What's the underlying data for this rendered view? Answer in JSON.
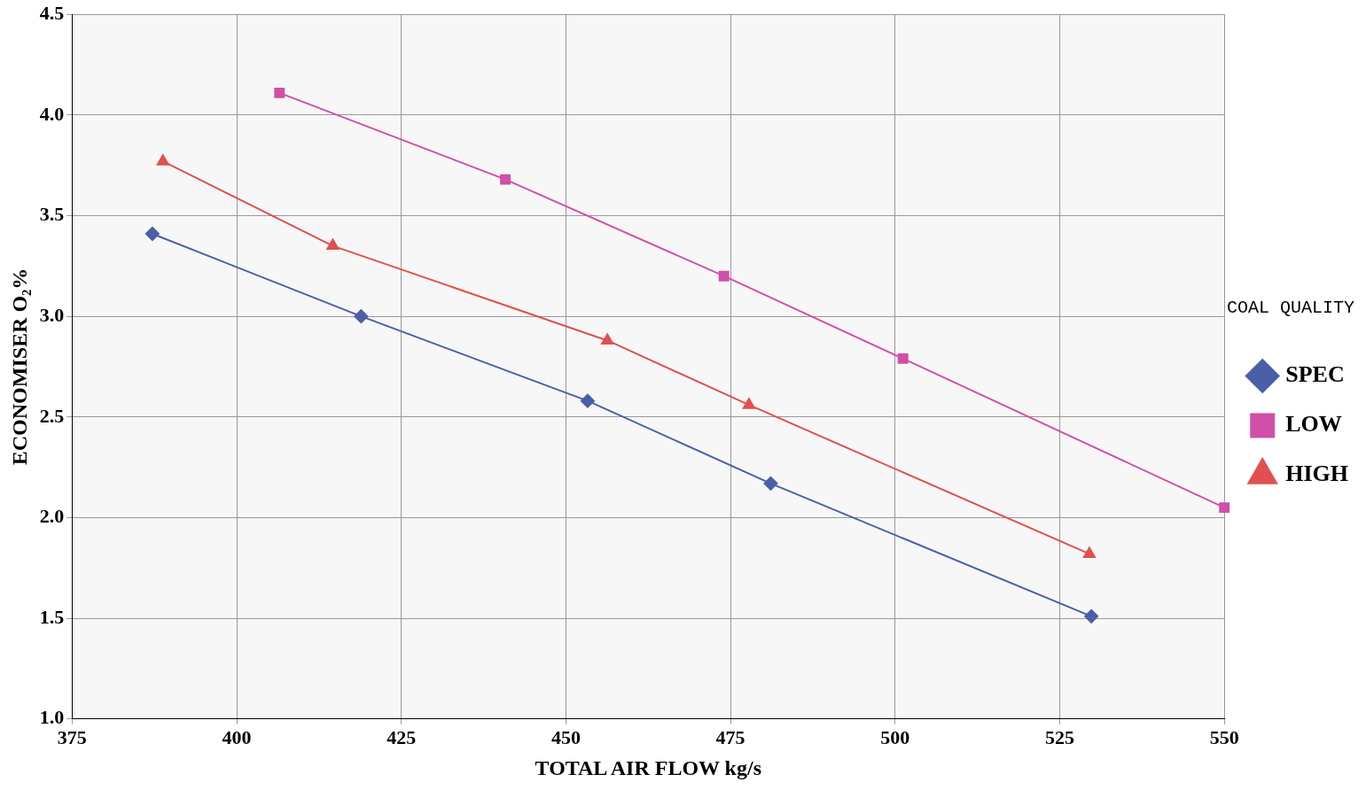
{
  "chart_data": {
    "type": "line",
    "xlabel": "TOTAL AIR FLOW kg/s",
    "ylabel": "ECONOMISER O₂%",
    "legend_title": "COAL QUALITY",
    "legend": "right",
    "xlim": [
      375,
      550
    ],
    "xticks": [
      375,
      400,
      425,
      450,
      475,
      500,
      525,
      550
    ],
    "ylim": [
      1.0,
      4.5
    ],
    "yticks": [
      {
        "value": 1.0,
        "label": "1.0"
      },
      {
        "value": 1.5,
        "label": "1.5"
      },
      {
        "value": 2.0,
        "label": "2.0"
      },
      {
        "value": 2.5,
        "label": "2.5"
      },
      {
        "value": 3.0,
        "label": "3.0"
      },
      {
        "value": 3.5,
        "label": "3.5"
      },
      {
        "value": 4.0,
        "label": "4.0"
      },
      {
        "value": 4.5,
        "label": "4.5"
      }
    ],
    "grid": true,
    "series": [
      {
        "name": "SPEC",
        "color": "#4a5fa8",
        "marker": "diamond",
        "x": [
          387.2,
          418.9,
          453.3,
          481.1,
          529.8
        ],
        "values": [
          3.41,
          3.0,
          2.58,
          2.17,
          1.51
        ]
      },
      {
        "name": "LOW",
        "color": "#d14fa8",
        "marker": "square",
        "x": [
          406.5,
          440.8,
          474.0,
          501.2,
          550
        ],
        "values": [
          4.11,
          3.68,
          3.2,
          2.79,
          2.05
        ]
      },
      {
        "name": "HIGH",
        "color": "#e05050",
        "marker": "triangle",
        "x": [
          388.8,
          414.6,
          456.3,
          477.8,
          529.5
        ],
        "values": [
          3.77,
          3.35,
          2.88,
          2.56,
          1.82
        ]
      }
    ]
  }
}
